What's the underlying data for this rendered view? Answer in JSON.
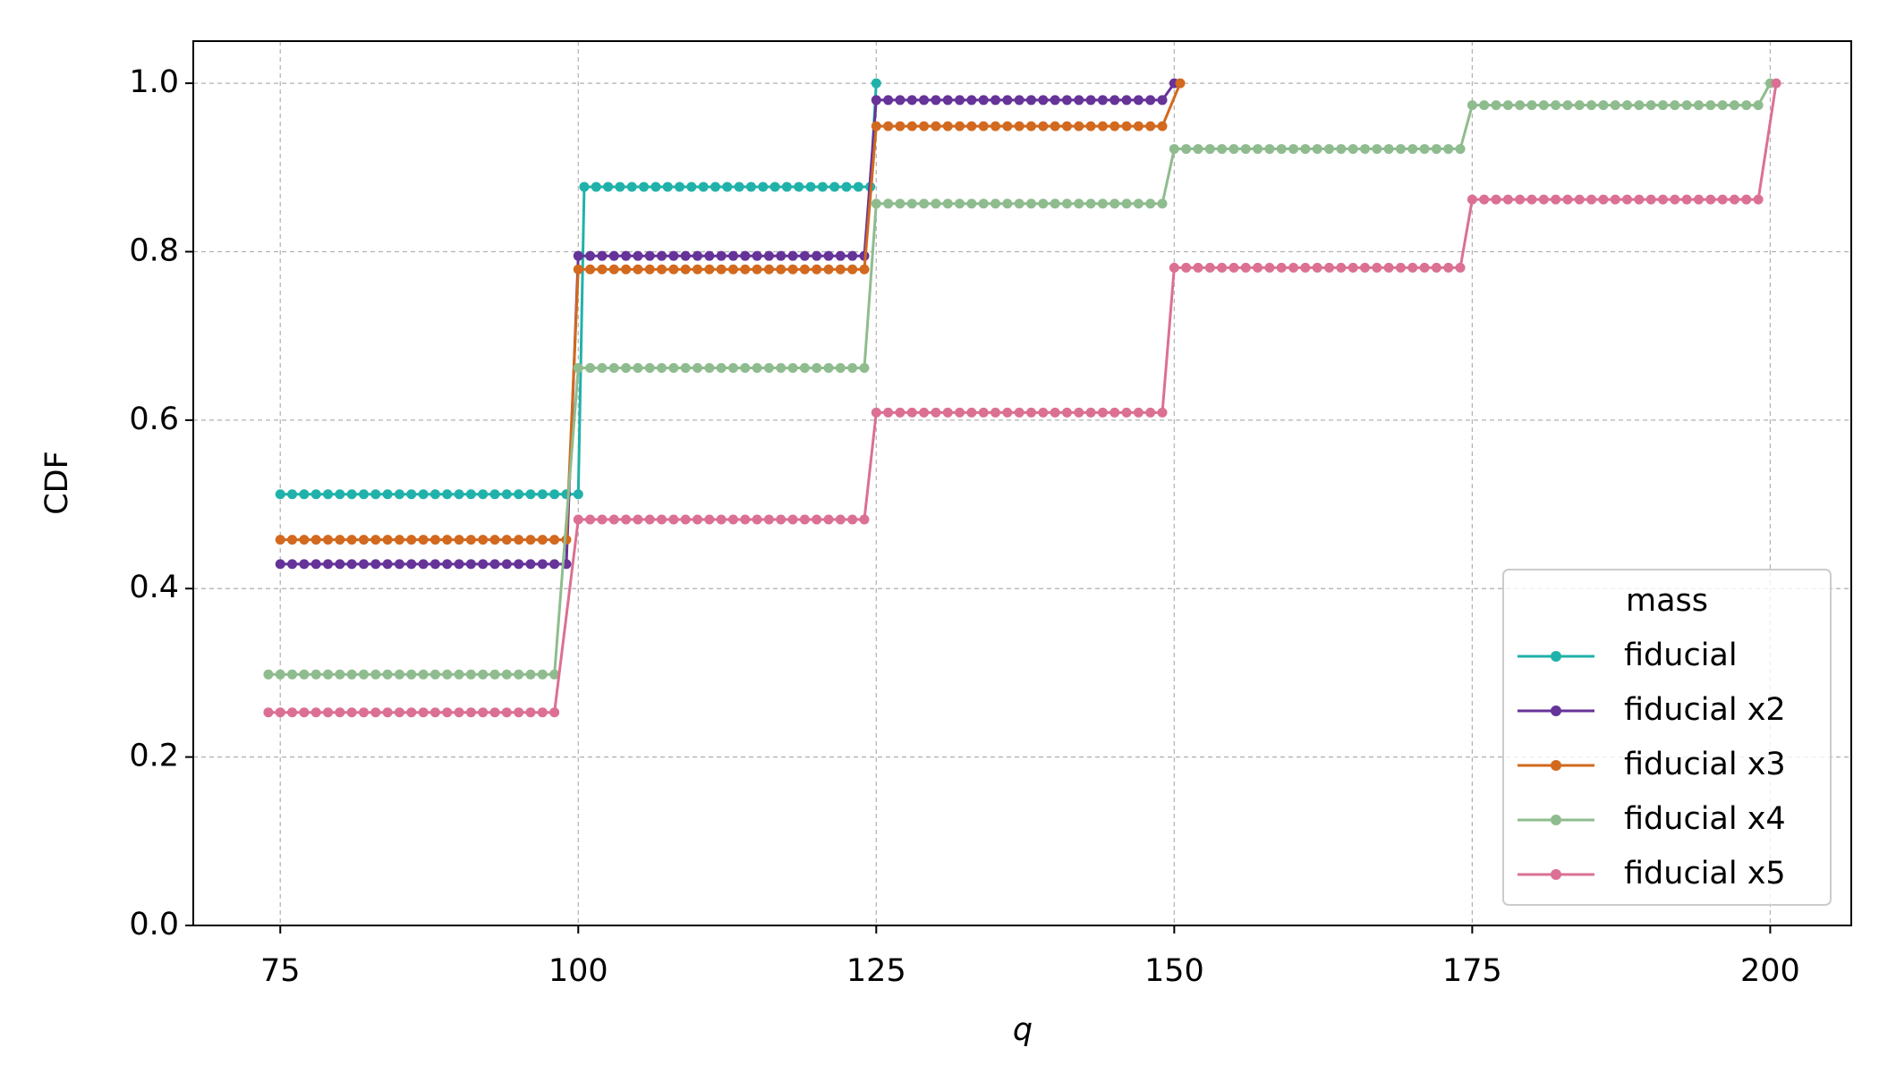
{
  "chart_data": {
    "type": "line",
    "x_label": "q",
    "y_label": "CDF",
    "xlim": [
      67.7,
      206.8
    ],
    "ylim": [
      0,
      1.05
    ],
    "xticks": [
      75,
      100,
      125,
      150,
      175,
      200
    ],
    "yticks": [
      {
        "value": 0,
        "label": "0.0"
      },
      0.2,
      0.4,
      0.6,
      0.8,
      {
        "value": 1,
        "label": "1.0"
      }
    ],
    "grid": true,
    "legend_title": "mass",
    "legend_position": "lower right",
    "series": [
      {
        "name": "fiducial",
        "color": "#20b2aa",
        "x": [
          75,
          76,
          77,
          78,
          79,
          80,
          81,
          82,
          83,
          84,
          85,
          86,
          87,
          88,
          89,
          90,
          91,
          92,
          93,
          94,
          95,
          96,
          97,
          98,
          99,
          100,
          100.5,
          101.5,
          102.5,
          103.5,
          104.5,
          105.5,
          106.5,
          107.5,
          108.5,
          109.5,
          110.5,
          111.5,
          112.5,
          113.5,
          114.5,
          115.5,
          116.5,
          117.5,
          118.5,
          119.5,
          120.5,
          121.5,
          122.5,
          123.5,
          124.5,
          125
        ],
        "values": [
          0.512,
          0.512,
          0.512,
          0.512,
          0.512,
          0.512,
          0.512,
          0.512,
          0.512,
          0.512,
          0.512,
          0.512,
          0.512,
          0.512,
          0.512,
          0.512,
          0.512,
          0.512,
          0.512,
          0.512,
          0.512,
          0.512,
          0.512,
          0.512,
          0.512,
          0.512,
          0.877,
          0.877,
          0.877,
          0.877,
          0.877,
          0.877,
          0.877,
          0.877,
          0.877,
          0.877,
          0.877,
          0.877,
          0.877,
          0.877,
          0.877,
          0.877,
          0.877,
          0.877,
          0.877,
          0.877,
          0.877,
          0.877,
          0.877,
          0.877,
          0.877,
          1.0
        ]
      },
      {
        "name": "fiducial x2",
        "color": "#663399",
        "x": [
          75,
          76,
          77,
          78,
          79,
          80,
          81,
          82,
          83,
          84,
          85,
          86,
          87,
          88,
          89,
          90,
          91,
          92,
          93,
          94,
          95,
          96,
          97,
          98,
          99,
          100,
          101,
          102,
          103,
          104,
          105,
          106,
          107,
          108,
          109,
          110,
          111,
          112,
          113,
          114,
          115,
          116,
          117,
          118,
          119,
          120,
          121,
          122,
          123,
          124,
          125,
          126,
          127,
          128,
          129,
          130,
          131,
          132,
          133,
          134,
          135,
          136,
          137,
          138,
          139,
          140,
          141,
          142,
          143,
          144,
          145,
          146,
          147,
          148,
          149,
          150
        ],
        "values": [
          0.429,
          0.429,
          0.429,
          0.429,
          0.429,
          0.429,
          0.429,
          0.429,
          0.429,
          0.429,
          0.429,
          0.429,
          0.429,
          0.429,
          0.429,
          0.429,
          0.429,
          0.429,
          0.429,
          0.429,
          0.429,
          0.429,
          0.429,
          0.429,
          0.429,
          0.795,
          0.795,
          0.795,
          0.795,
          0.795,
          0.795,
          0.795,
          0.795,
          0.795,
          0.795,
          0.795,
          0.795,
          0.795,
          0.795,
          0.795,
          0.795,
          0.795,
          0.795,
          0.795,
          0.795,
          0.795,
          0.795,
          0.795,
          0.795,
          0.795,
          0.98,
          0.98,
          0.98,
          0.98,
          0.98,
          0.98,
          0.98,
          0.98,
          0.98,
          0.98,
          0.98,
          0.98,
          0.98,
          0.98,
          0.98,
          0.98,
          0.98,
          0.98,
          0.98,
          0.98,
          0.98,
          0.98,
          0.98,
          0.98,
          0.98,
          1.0
        ]
      },
      {
        "name": "fiducial x3",
        "color": "#d2691e",
        "x": [
          75,
          76,
          77,
          78,
          79,
          80,
          81,
          82,
          83,
          84,
          85,
          86,
          87,
          88,
          89,
          90,
          91,
          92,
          93,
          94,
          95,
          96,
          97,
          98,
          99,
          100,
          101,
          102,
          103,
          104,
          105,
          106,
          107,
          108,
          109,
          110,
          111,
          112,
          113,
          114,
          115,
          116,
          117,
          118,
          119,
          120,
          121,
          122,
          123,
          124,
          125,
          126,
          127,
          128,
          129,
          130,
          131,
          132,
          133,
          134,
          135,
          136,
          137,
          138,
          139,
          140,
          141,
          142,
          143,
          144,
          145,
          146,
          147,
          148,
          149,
          150.5
        ],
        "values": [
          0.458,
          0.458,
          0.458,
          0.458,
          0.458,
          0.458,
          0.458,
          0.458,
          0.458,
          0.458,
          0.458,
          0.458,
          0.458,
          0.458,
          0.458,
          0.458,
          0.458,
          0.458,
          0.458,
          0.458,
          0.458,
          0.458,
          0.458,
          0.458,
          0.458,
          0.779,
          0.779,
          0.779,
          0.779,
          0.779,
          0.779,
          0.779,
          0.779,
          0.779,
          0.779,
          0.779,
          0.779,
          0.779,
          0.779,
          0.779,
          0.779,
          0.779,
          0.779,
          0.779,
          0.779,
          0.779,
          0.779,
          0.779,
          0.779,
          0.779,
          0.949,
          0.949,
          0.949,
          0.949,
          0.949,
          0.949,
          0.949,
          0.949,
          0.949,
          0.949,
          0.949,
          0.949,
          0.949,
          0.949,
          0.949,
          0.949,
          0.949,
          0.949,
          0.949,
          0.949,
          0.949,
          0.949,
          0.949,
          0.949,
          0.949,
          1.0
        ]
      },
      {
        "name": "fiducial x4",
        "color": "#8fbc8f",
        "x": [
          74,
          75,
          76,
          77,
          78,
          79,
          80,
          81,
          82,
          83,
          84,
          85,
          86,
          87,
          88,
          89,
          90,
          91,
          92,
          93,
          94,
          95,
          96,
          97,
          98,
          100,
          101,
          102,
          103,
          104,
          105,
          106,
          107,
          108,
          109,
          110,
          111,
          112,
          113,
          114,
          115,
          116,
          117,
          118,
          119,
          120,
          121,
          122,
          123,
          124,
          125,
          126,
          127,
          128,
          129,
          130,
          131,
          132,
          133,
          134,
          135,
          136,
          137,
          138,
          139,
          140,
          141,
          142,
          143,
          144,
          145,
          146,
          147,
          148,
          149,
          150,
          151,
          152,
          153,
          154,
          155,
          156,
          157,
          158,
          159,
          160,
          161,
          162,
          163,
          164,
          165,
          166,
          167,
          168,
          169,
          170,
          171,
          172,
          173,
          174,
          175,
          176,
          177,
          178,
          179,
          180,
          181,
          182,
          183,
          184,
          185,
          186,
          187,
          188,
          189,
          190,
          191,
          192,
          193,
          194,
          195,
          196,
          197,
          198,
          199,
          200
        ],
        "values": [
          0.298,
          0.298,
          0.298,
          0.298,
          0.298,
          0.298,
          0.298,
          0.298,
          0.298,
          0.298,
          0.298,
          0.298,
          0.298,
          0.298,
          0.298,
          0.298,
          0.298,
          0.298,
          0.298,
          0.298,
          0.298,
          0.298,
          0.298,
          0.298,
          0.298,
          0.662,
          0.662,
          0.662,
          0.662,
          0.662,
          0.662,
          0.662,
          0.662,
          0.662,
          0.662,
          0.662,
          0.662,
          0.662,
          0.662,
          0.662,
          0.662,
          0.662,
          0.662,
          0.662,
          0.662,
          0.662,
          0.662,
          0.662,
          0.662,
          0.662,
          0.857,
          0.857,
          0.857,
          0.857,
          0.857,
          0.857,
          0.857,
          0.857,
          0.857,
          0.857,
          0.857,
          0.857,
          0.857,
          0.857,
          0.857,
          0.857,
          0.857,
          0.857,
          0.857,
          0.857,
          0.857,
          0.857,
          0.857,
          0.857,
          0.857,
          0.922,
          0.922,
          0.922,
          0.922,
          0.922,
          0.922,
          0.922,
          0.922,
          0.922,
          0.922,
          0.922,
          0.922,
          0.922,
          0.922,
          0.922,
          0.922,
          0.922,
          0.922,
          0.922,
          0.922,
          0.922,
          0.922,
          0.922,
          0.922,
          0.922,
          0.974,
          0.974,
          0.974,
          0.974,
          0.974,
          0.974,
          0.974,
          0.974,
          0.974,
          0.974,
          0.974,
          0.974,
          0.974,
          0.974,
          0.974,
          0.974,
          0.974,
          0.974,
          0.974,
          0.974,
          0.974,
          0.974,
          0.974,
          0.974,
          0.974,
          1.0
        ]
      },
      {
        "name": "fiducial x5",
        "color": "#db7093",
        "x": [
          74,
          75,
          76,
          77,
          78,
          79,
          80,
          81,
          82,
          83,
          84,
          85,
          86,
          87,
          88,
          89,
          90,
          91,
          92,
          93,
          94,
          95,
          96,
          97,
          98,
          100,
          101,
          102,
          103,
          104,
          105,
          106,
          107,
          108,
          109,
          110,
          111,
          112,
          113,
          114,
          115,
          116,
          117,
          118,
          119,
          120,
          121,
          122,
          123,
          124,
          125,
          126,
          127,
          128,
          129,
          130,
          131,
          132,
          133,
          134,
          135,
          136,
          137,
          138,
          139,
          140,
          141,
          142,
          143,
          144,
          145,
          146,
          147,
          148,
          149,
          150,
          151,
          152,
          153,
          154,
          155,
          156,
          157,
          158,
          159,
          160,
          161,
          162,
          163,
          164,
          165,
          166,
          167,
          168,
          169,
          170,
          171,
          172,
          173,
          174,
          175,
          176,
          177,
          178,
          179,
          180,
          181,
          182,
          183,
          184,
          185,
          186,
          187,
          188,
          189,
          190,
          191,
          192,
          193,
          194,
          195,
          196,
          197,
          198,
          199,
          200.5
        ],
        "values": [
          0.253,
          0.253,
          0.253,
          0.253,
          0.253,
          0.253,
          0.253,
          0.253,
          0.253,
          0.253,
          0.253,
          0.253,
          0.253,
          0.253,
          0.253,
          0.253,
          0.253,
          0.253,
          0.253,
          0.253,
          0.253,
          0.253,
          0.253,
          0.253,
          0.253,
          0.482,
          0.482,
          0.482,
          0.482,
          0.482,
          0.482,
          0.482,
          0.482,
          0.482,
          0.482,
          0.482,
          0.482,
          0.482,
          0.482,
          0.482,
          0.482,
          0.482,
          0.482,
          0.482,
          0.482,
          0.482,
          0.482,
          0.482,
          0.482,
          0.482,
          0.609,
          0.609,
          0.609,
          0.609,
          0.609,
          0.609,
          0.609,
          0.609,
          0.609,
          0.609,
          0.609,
          0.609,
          0.609,
          0.609,
          0.609,
          0.609,
          0.609,
          0.609,
          0.609,
          0.609,
          0.609,
          0.609,
          0.609,
          0.609,
          0.609,
          0.781,
          0.781,
          0.781,
          0.781,
          0.781,
          0.781,
          0.781,
          0.781,
          0.781,
          0.781,
          0.781,
          0.781,
          0.781,
          0.781,
          0.781,
          0.781,
          0.781,
          0.781,
          0.781,
          0.781,
          0.781,
          0.781,
          0.781,
          0.781,
          0.781,
          0.862,
          0.862,
          0.862,
          0.862,
          0.862,
          0.862,
          0.862,
          0.862,
          0.862,
          0.862,
          0.862,
          0.862,
          0.862,
          0.862,
          0.862,
          0.862,
          0.862,
          0.862,
          0.862,
          0.862,
          0.862,
          0.862,
          0.862,
          0.862,
          0.862,
          1.0
        ]
      }
    ]
  }
}
